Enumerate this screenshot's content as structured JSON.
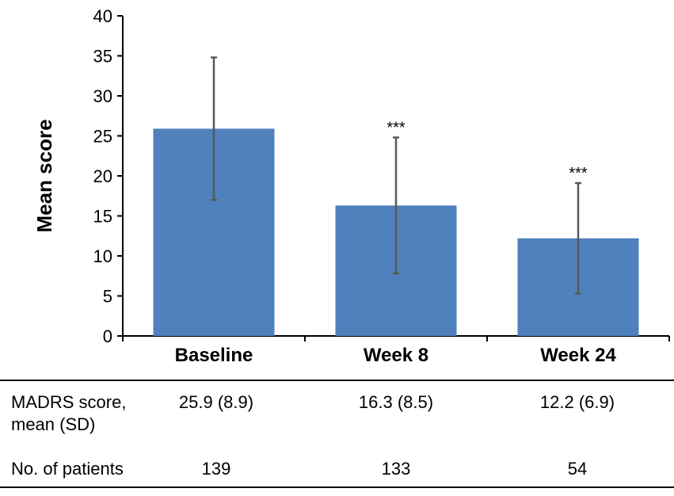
{
  "chart_data": {
    "type": "bar",
    "categories": [
      "Baseline",
      "Week 8",
      "Week 24"
    ],
    "values": [
      25.9,
      16.3,
      12.2
    ],
    "error_sd": [
      8.9,
      8.5,
      6.9
    ],
    "annotations": [
      "",
      "***",
      "***"
    ],
    "ylabel": "Mean score",
    "xlabel": "",
    "ylim": [
      0,
      40
    ],
    "yticks": [
      0,
      5,
      10,
      15,
      20,
      25,
      30,
      35,
      40
    ],
    "bar_color": "#4f81bd",
    "error_color": "#595959"
  },
  "table": {
    "rows": [
      {
        "label_line1": "MADRS score,",
        "label_line2": "mean (SD)",
        "cells": [
          "25.9 (8.9)",
          "16.3 (8.5)",
          "12.2 (6.9)"
        ]
      },
      {
        "label_line1": "No. of patients",
        "label_line2": "",
        "cells": [
          "139",
          "133",
          "54"
        ]
      }
    ]
  }
}
